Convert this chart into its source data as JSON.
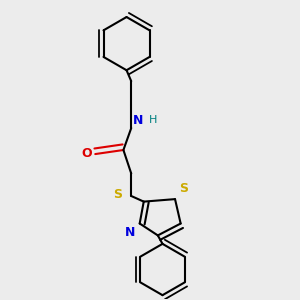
{
  "bg_color": "#ececec",
  "atom_colors": {
    "C": "#000000",
    "N": "#0000dd",
    "O": "#dd0000",
    "S": "#ccaa00",
    "H": "#008080"
  },
  "bond_color": "#000000",
  "bond_width": 1.5
}
